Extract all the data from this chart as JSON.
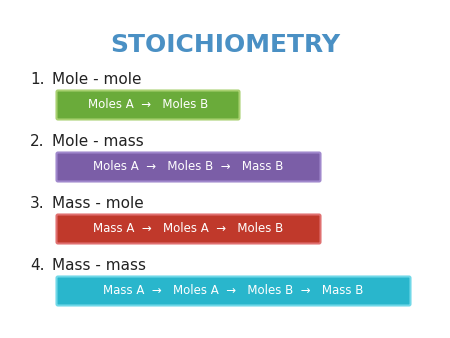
{
  "title": "STOICHIOMETRY",
  "title_color": "#4A90C4",
  "title_fontsize": 18,
  "background_color": "#FFFFFF",
  "figsize": [
    4.5,
    3.38
  ],
  "dpi": 100,
  "items": [
    {
      "number": "1.",
      "label": "Mole - mole",
      "box_text": "Moles A  →   Moles B",
      "box_color": "#6AAB3A",
      "box_border": "#A8D070",
      "text_color": "#FFFFFF",
      "box_width": 0.4
    },
    {
      "number": "2.",
      "label": "Mole - mass",
      "box_text": "Moles A  →   Moles B  →   Mass B",
      "box_color": "#7B5EA7",
      "box_border": "#A088CC",
      "text_color": "#FFFFFF",
      "box_width": 0.58
    },
    {
      "number": "3.",
      "label": "Mass - mole",
      "box_text": "Mass A  →   Moles A  →   Moles B",
      "box_color": "#C0392B",
      "box_border": "#E07070",
      "text_color": "#FFFFFF",
      "box_width": 0.58
    },
    {
      "number": "4.",
      "label": "Mass - mass",
      "box_text": "Mass A  →   Moles A  →   Moles B  →   Mass B",
      "box_color": "#29B6CC",
      "box_border": "#70D8E8",
      "text_color": "#FFFFFF",
      "box_width": 0.78
    }
  ]
}
